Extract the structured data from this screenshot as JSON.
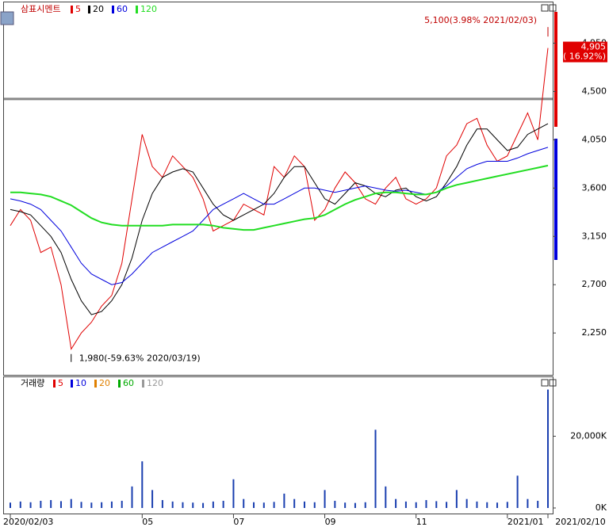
{
  "chart_data": [
    {
      "type": "line",
      "title": "삼표시멘트",
      "categories": [
        "2020/02/03",
        null,
        null,
        null,
        null,
        null,
        null,
        null,
        null,
        null,
        null,
        null,
        null,
        "05",
        null,
        null,
        null,
        null,
        null,
        null,
        null,
        null,
        "07",
        null,
        null,
        null,
        null,
        null,
        null,
        null,
        null,
        "09",
        null,
        null,
        null,
        null,
        null,
        null,
        null,
        null,
        "11",
        null,
        null,
        null,
        null,
        null,
        null,
        null,
        null,
        "2021/01",
        null,
        null,
        null,
        "2021/02/10"
      ],
      "series": [
        {
          "name": "5",
          "color": "#e00000",
          "values": [
            3250,
            3400,
            3300,
            3000,
            3050,
            2700,
            2100,
            2250,
            2350,
            2500,
            2600,
            2900,
            3500,
            4100,
            3800,
            3700,
            3900,
            3800,
            3700,
            3500,
            3200,
            3250,
            3300,
            3450,
            3400,
            3350,
            3800,
            3700,
            3900,
            3800,
            3300,
            3400,
            3600,
            3750,
            3650,
            3500,
            3450,
            3600,
            3700,
            3500,
            3450,
            3500,
            3600,
            3900,
            4000,
            4200,
            4250,
            4000,
            3850,
            3900,
            4100,
            4300,
            4050,
            4905
          ]
        },
        {
          "name": "20",
          "color": "#000000",
          "values": [
            3400,
            3380,
            3350,
            3250,
            3150,
            3000,
            2750,
            2550,
            2420,
            2450,
            2550,
            2700,
            2950,
            3300,
            3550,
            3700,
            3750,
            3780,
            3750,
            3600,
            3450,
            3350,
            3300,
            3350,
            3400,
            3450,
            3550,
            3700,
            3800,
            3800,
            3650,
            3500,
            3450,
            3550,
            3650,
            3620,
            3550,
            3520,
            3580,
            3600,
            3520,
            3480,
            3520,
            3650,
            3800,
            4000,
            4150,
            4150,
            4050,
            3950,
            3980,
            4100,
            4150,
            4200
          ]
        },
        {
          "name": "60",
          "color": "#0000dd",
          "values": [
            3500,
            3480,
            3450,
            3400,
            3300,
            3200,
            3050,
            2900,
            2800,
            2750,
            2700,
            2720,
            2800,
            2900,
            3000,
            3050,
            3100,
            3150,
            3200,
            3300,
            3400,
            3450,
            3500,
            3550,
            3500,
            3450,
            3450,
            3500,
            3550,
            3600,
            3600,
            3580,
            3560,
            3580,
            3600,
            3620,
            3600,
            3580,
            3570,
            3580,
            3560,
            3540,
            3560,
            3620,
            3700,
            3780,
            3820,
            3850,
            3850,
            3850,
            3880,
            3920,
            3950,
            3980
          ]
        },
        {
          "name": "120",
          "color": "#22dd22",
          "values": [
            3560,
            3560,
            3550,
            3540,
            3520,
            3480,
            3440,
            3380,
            3320,
            3280,
            3260,
            3250,
            3250,
            3250,
            3250,
            3250,
            3260,
            3260,
            3260,
            3260,
            3250,
            3230,
            3220,
            3210,
            3210,
            3230,
            3250,
            3270,
            3290,
            3310,
            3320,
            3350,
            3400,
            3450,
            3490,
            3520,
            3550,
            3560,
            3560,
            3550,
            3540,
            3540,
            3560,
            3600,
            3630,
            3650,
            3670,
            3690,
            3710,
            3730,
            3750,
            3770,
            3790,
            3810
          ]
        }
      ],
      "ylim": [
        1860,
        5330
      ],
      "yticks": [
        {
          "value": 2250,
          "label": "2,250"
        },
        {
          "value": 2700,
          "label": "2,700"
        },
        {
          "value": 3150,
          "label": "3,150"
        },
        {
          "value": 3600,
          "label": "3,600"
        },
        {
          "value": 4050,
          "label": "4,050"
        },
        {
          "value": 4500,
          "label": "4,500"
        },
        {
          "value": 4950,
          "label": "4,950"
        }
      ],
      "hline": 4430,
      "high": {
        "value": 5100,
        "label": "5,100(3.98% 2021/02/03)"
      },
      "low": {
        "value": 1980,
        "label": "1,980(-59.63% 2020/03/19)"
      },
      "last": {
        "value": 4905,
        "label": "4,905",
        "change": "( 16.92%)"
      }
    },
    {
      "type": "bar",
      "title": "거래량",
      "color": "#1a3fb0",
      "legend": [
        {
          "name": "5",
          "color": "#e00000"
        },
        {
          "name": "10",
          "color": "#0000dd"
        },
        {
          "name": "20",
          "color": "#e08000"
        },
        {
          "name": "60",
          "color": "#00aa00"
        },
        {
          "name": "120",
          "color": "#999999"
        }
      ],
      "values": [
        1500,
        1800,
        1600,
        2000,
        2200,
        1900,
        2500,
        1700,
        1500,
        1600,
        1800,
        2000,
        6000,
        13000,
        5000,
        2200,
        1800,
        1600,
        1500,
        1400,
        1800,
        2000,
        8000,
        2500,
        1600,
        1500,
        1700,
        4000,
        2500,
        1800,
        1600,
        5000,
        2000,
        1500,
        1400,
        1600,
        21800,
        6000,
        2500,
        1800,
        1600,
        2200,
        1900,
        1700,
        5000,
        2500,
        1800,
        1600,
        1500,
        1700,
        9000,
        2500,
        2000,
        33000
      ],
      "ylim": [
        0,
        36000
      ],
      "yticks": [
        {
          "value": 0,
          "label": "0K"
        },
        {
          "value": 20000,
          "label": "20,000K"
        }
      ]
    }
  ]
}
